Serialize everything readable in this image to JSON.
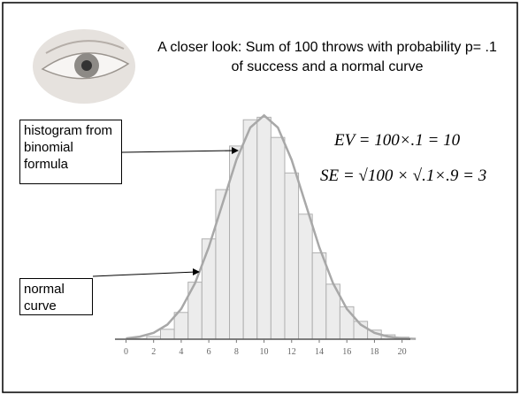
{
  "chart_data": {
    "type": "histogram",
    "title": "A closer look: Sum of 100 throws with probability p= .1 of success and a normal curve",
    "annotations": [
      "histogram from binomial formula",
      "normal curve"
    ],
    "formulas": [
      "EV = 100×.1 = 10",
      "SE = √100 × √.1×.9 = 3"
    ],
    "bins": [
      -0.5,
      0.5,
      1.5,
      2.5,
      3.5,
      4.5,
      5.5,
      6.5,
      7.5,
      8.5,
      9.5,
      10.5,
      11.5,
      12.5,
      13.5,
      14.5,
      15.5,
      16.5,
      17.5,
      18.5,
      19.5,
      20.5
    ],
    "values": [
      0,
      0.03,
      0.16,
      0.59,
      1.59,
      3.39,
      5.96,
      8.89,
      11.48,
      13.04,
      13.19,
      11.99,
      9.88,
      7.43,
      5.13,
      3.27,
      1.93,
      1.06,
      0.54,
      0.26,
      0.12
    ],
    "color": "#ececec",
    "normal_curve": {
      "x": [
        0,
        1,
        2,
        3,
        4,
        5,
        6,
        7,
        8,
        9,
        10,
        11,
        12,
        13,
        14,
        15,
        16,
        17,
        18,
        19,
        20,
        21
      ],
      "values": [
        0.05,
        0.15,
        0.38,
        0.87,
        1.8,
        3.32,
        5.47,
        8.07,
        10.65,
        12.58,
        13.3,
        12.58,
        10.65,
        8.07,
        5.47,
        3.32,
        1.8,
        0.87,
        0.38,
        0.15,
        0.05,
        0.02
      ],
      "color": "#a8a8a8"
    },
    "xlim": [
      -0.8,
      20.6
    ],
    "xticks": [
      0,
      2,
      4,
      6,
      8,
      10,
      12,
      14,
      16,
      18,
      20
    ],
    "ylim": [
      0,
      14
    ]
  }
}
